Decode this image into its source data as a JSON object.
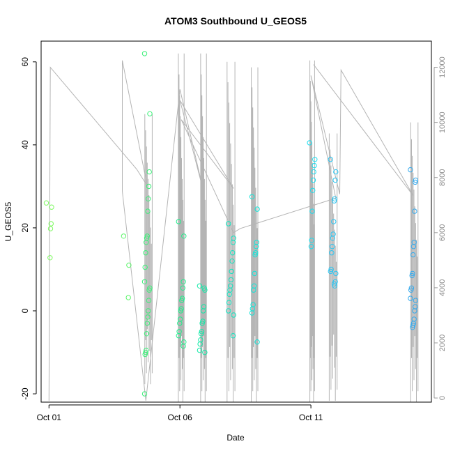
{
  "chart_data": {
    "type": "scatter",
    "title": "ATOM3 Southbound U_GEOS5",
    "xlabel": "Date",
    "ylabel": "U_GEOS5",
    "x_ticks": [
      {
        "day": 1,
        "label": "Oct 01"
      },
      {
        "day": 6,
        "label": "Oct 06"
      },
      {
        "day": 11,
        "label": "Oct 11"
      }
    ],
    "xlim_days": [
      0.7,
      15.6
    ],
    "ylim": [
      -22,
      65
    ],
    "y_ticks": [
      -20,
      0,
      20,
      40,
      60
    ],
    "y2lim": [
      -150,
      12950
    ],
    "y2_ticks": [
      0,
      2000,
      4000,
      6000,
      8000,
      10000,
      12000
    ],
    "grid": false,
    "point_colors": [
      "#7cf95e",
      "#5cf56a",
      "#3af078",
      "#20ee8c",
      "#10eaa8",
      "#10e6c2",
      "#10e6da",
      "#18def0",
      "#28c6f4",
      "#34aaee"
    ],
    "altitude_color": "#b4b4b4",
    "clusters": [
      {
        "day": 1.0,
        "values": [
          26,
          25,
          21,
          19.8,
          12.8
        ]
      },
      {
        "day": 3.95,
        "values": [
          18,
          11,
          3.2
        ]
      },
      {
        "day": 4.75,
        "values": [
          62,
          47.5,
          33.5,
          30,
          27,
          24,
          18,
          17.5,
          16.5,
          14,
          10.5,
          7,
          5.5,
          5,
          2.5,
          0,
          -1.5,
          -3,
          -5.5,
          -9.5,
          -10,
          -10.5,
          -20
        ]
      },
      {
        "day": 6.05,
        "values": [
          21.5,
          18,
          7,
          5.5,
          3,
          2.5,
          0.5,
          0,
          -2,
          -3,
          -5,
          -6,
          -7.5,
          -8.5
        ]
      },
      {
        "day": 6.85,
        "values": [
          6,
          5,
          5.5,
          1,
          0,
          -2.5,
          -3,
          -5,
          -5.5,
          -7,
          -8,
          -9.5,
          -10
        ]
      },
      {
        "day": 7.95,
        "values": [
          21,
          17.5,
          16.5,
          14,
          12,
          9.5,
          7.5,
          6,
          5,
          4,
          2,
          0,
          -1,
          -6
        ]
      },
      {
        "day": 8.85,
        "values": [
          27.5,
          24.5,
          16.5,
          15.5,
          14,
          13.5,
          9,
          6,
          5,
          1.5,
          0.5,
          -0.5,
          -7.5
        ]
      },
      {
        "day": 11.05,
        "values": [
          40.5,
          36.5,
          35,
          33.5,
          31.5,
          29,
          24,
          17,
          15.5
        ]
      },
      {
        "day": 11.85,
        "values": [
          36.5,
          33.5,
          31.5,
          27,
          26.5,
          21.5,
          18.5,
          17.5,
          15.5,
          14,
          10,
          9.5,
          9,
          7,
          6,
          6.5
        ]
      },
      {
        "day": 14.9,
        "values": [
          34,
          31.5,
          31,
          24,
          16.5,
          15.5,
          13.5,
          9,
          8.5,
          5.5,
          5,
          3,
          2.5,
          1,
          0,
          -2,
          -3,
          -3.5,
          -4
        ]
      }
    ],
    "altitude_trace": [
      [
        1.0,
        -100
      ],
      [
        1.05,
        12000
      ],
      [
        4.35,
        8300
      ],
      [
        4.75,
        7700
      ],
      [
        3.8,
        12250
      ],
      [
        3.8,
        7500
      ],
      [
        4.7,
        -100
      ],
      [
        6.0,
        11200
      ],
      [
        6.9,
        7500
      ],
      [
        6.0,
        10800
      ],
      [
        8.05,
        7600
      ],
      [
        6.05,
        10100
      ],
      [
        8.05,
        6000
      ],
      [
        8.3,
        6150
      ],
      [
        11.95,
        7250
      ],
      [
        11.0,
        11700
      ],
      [
        12.1,
        7400
      ],
      [
        12.15,
        11900
      ],
      [
        14.9,
        7350
      ],
      [
        11.1,
        12100
      ]
    ],
    "altitude_bursts": [
      {
        "day": 4.8,
        "top": 10300,
        "bottom": 500,
        "width": 0.28
      },
      {
        "day": 6.05,
        "top": 12500,
        "bottom": -150,
        "width": 0.22
      },
      {
        "day": 6.9,
        "top": 12500,
        "bottom": -150,
        "width": 0.22
      },
      {
        "day": 7.95,
        "top": 12200,
        "bottom": -150,
        "width": 0.3
      },
      {
        "day": 8.85,
        "top": 12000,
        "bottom": -150,
        "width": 0.25
      },
      {
        "day": 11.05,
        "top": 12250,
        "bottom": -150,
        "width": 0.18
      },
      {
        "day": 11.85,
        "top": 9600,
        "bottom": -100,
        "width": 0.3
      },
      {
        "day": 14.95,
        "top": 10000,
        "bottom": -150,
        "width": 0.28
      }
    ]
  }
}
